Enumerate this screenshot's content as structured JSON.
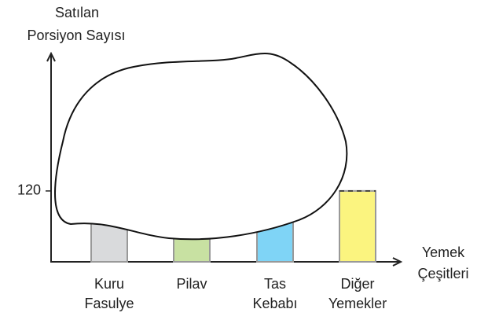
{
  "chart_data": {
    "type": "bar",
    "ylabel": [
      "Satılan",
      "Porsiyon Sayısı"
    ],
    "xlabel": [
      "Yemek",
      "Çeşitleri"
    ],
    "categories": [
      [
        "Kuru",
        "Fasulye"
      ],
      [
        "Pilav"
      ],
      [
        "Tas",
        "Kebabı"
      ],
      [
        "Diğer",
        "Yemekler"
      ]
    ],
    "values": [
      null,
      null,
      null,
      120
    ],
    "colors": [
      "#d9dadc",
      "#c8e1a2",
      "#7fd4f6",
      "#fbf47f"
    ],
    "ylim": [
      0,
      350
    ],
    "yticks": [
      120
    ]
  }
}
